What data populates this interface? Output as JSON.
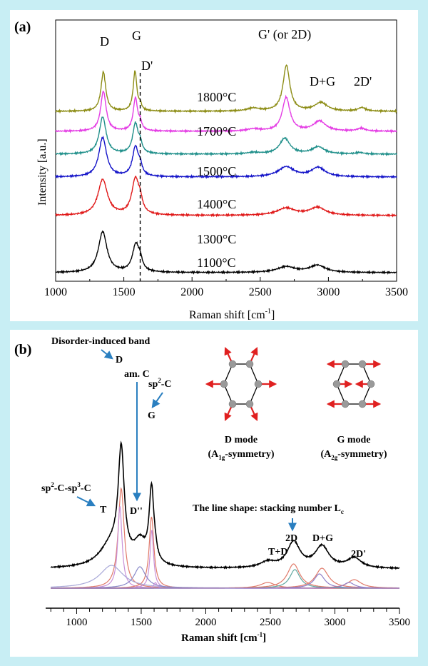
{
  "chart_data": [
    {
      "panel_label": "(a)",
      "type": "line",
      "xlabel": "Raman shift [cm",
      "xlabel_sup": "-1",
      "xlabel_end": "]",
      "ylabel": "Intensity [a.u.]",
      "xlim": [
        1000,
        3500
      ],
      "xticks": [
        "1000",
        "1500",
        "2000",
        "2500",
        "3000",
        "3500"
      ],
      "peak_labels": {
        "D": "D",
        "G": "G",
        "Dprime": "D'",
        "Gprime": "G' (or 2D)",
        "DG": "D+G",
        "TwoDprime": "2D'"
      },
      "dashed_line_x": 1620,
      "grid": false,
      "series": [
        {
          "name": "1800°C",
          "color": "#8c8c14",
          "offset": 6,
          "peaks": [
            [
              1350,
              55,
              21
            ],
            [
              1582,
              56,
              16
            ],
            [
              1620,
              8,
              11
            ],
            [
              2450,
              4,
              55
            ],
            [
              2692,
              64,
              30
            ],
            [
              2945,
              12,
              55
            ],
            [
              3245,
              5,
              32
            ]
          ]
        },
        {
          "name": "1700°C",
          "color": "#e43ce4",
          "offset": 5,
          "peaks": [
            [
              1350,
              56,
              24
            ],
            [
              1585,
              46,
              19
            ],
            [
              1620,
              10,
              13
            ],
            [
              2450,
              3,
              55
            ],
            [
              2690,
              47,
              34
            ],
            [
              2935,
              14,
              55
            ],
            [
              3240,
              4,
              35
            ]
          ]
        },
        {
          "name": "1500°C",
          "color": "#1f8f8a",
          "offset": 4,
          "peaks": [
            [
              1345,
              52,
              30
            ],
            [
              1585,
              42,
              24
            ],
            [
              1620,
              12,
              15
            ],
            [
              2450,
              2,
              55
            ],
            [
              2680,
              22,
              46
            ],
            [
              2925,
              10,
              55
            ],
            [
              3230,
              2,
              35
            ]
          ]
        },
        {
          "name": "1400°C",
          "color": "#1212c8",
          "offset": 3,
          "peaks": [
            [
              1345,
              55,
              34
            ],
            [
              1585,
              41,
              26
            ],
            [
              1620,
              12,
              16
            ],
            [
              2690,
              14,
              70
            ],
            [
              2925,
              13,
              60
            ]
          ]
        },
        {
          "name": "1300°C",
          "color": "#e01818",
          "offset": 2,
          "peaks": [
            [
              1345,
              50,
              42
            ],
            [
              1585,
              50,
              32
            ],
            [
              1620,
              14,
              18
            ],
            [
              2690,
              10,
              80
            ],
            [
              2920,
              11,
              70
            ]
          ]
        },
        {
          "name": "1100°C",
          "color": "#000000",
          "offset": 1,
          "peaks": [
            [
              1345,
              57,
              38
            ],
            [
              1588,
              38,
              30
            ],
            [
              1620,
              12,
              18
            ],
            [
              2690,
              8,
              80
            ],
            [
              2920,
              10,
              70
            ]
          ]
        }
      ]
    },
    {
      "panel_label": "(b)",
      "type": "line",
      "xlabel": "Raman shift [cm",
      "xlabel_sup": "-1",
      "xlabel_end": "]",
      "xlim": [
        760,
        3500
      ],
      "xticks": [
        "1000",
        "1500",
        "2000",
        "2500",
        "3000",
        "3500"
      ],
      "grid": false,
      "total_spectrum": {
        "color": "#000000",
        "baseline": 8,
        "peaks": [
          [
            1345,
            150,
            28
          ],
          [
            1580,
            105,
            22
          ],
          [
            1270,
            32,
            110
          ],
          [
            1490,
            30,
            55
          ],
          [
            1610,
            8,
            14
          ],
          [
            2480,
            8,
            70
          ],
          [
            2680,
            36,
            60
          ],
          [
            2900,
            30,
            65
          ],
          [
            3150,
            14,
            65
          ]
        ]
      },
      "fit_components": [
        {
          "center": 1345,
          "height": 140,
          "width": 28,
          "color": "#e07a6a"
        },
        {
          "center": 1335,
          "height": 115,
          "width": 20,
          "color": "#c890d8"
        },
        {
          "center": 1580,
          "height": 100,
          "width": 22,
          "color": "#e07a6a"
        },
        {
          "center": 1582,
          "height": 82,
          "width": 16,
          "color": "#c890d8"
        },
        {
          "center": 1270,
          "height": 32,
          "width": 110,
          "color": "#a8a8d8"
        },
        {
          "center": 1490,
          "height": 30,
          "width": 55,
          "color": "#8888c8"
        },
        {
          "center": 1610,
          "height": 8,
          "width": 14,
          "color": "#c890d8"
        },
        {
          "center": 2480,
          "height": 8,
          "width": 70,
          "color": "#e07a6a"
        },
        {
          "center": 2680,
          "height": 34,
          "width": 58,
          "color": "#e07a6a"
        },
        {
          "center": 2690,
          "height": 26,
          "width": 48,
          "color": "#60a8a0"
        },
        {
          "center": 2900,
          "height": 28,
          "width": 62,
          "color": "#e07a6a"
        },
        {
          "center": 2880,
          "height": 20,
          "width": 50,
          "color": "#9080c8"
        },
        {
          "center": 3150,
          "height": 12,
          "width": 65,
          "color": "#e07a6a"
        },
        {
          "center": 3110,
          "height": 8,
          "width": 50,
          "color": "#9080c8"
        }
      ],
      "annotations": {
        "disorder_band": "Disorder-induced band",
        "D": "D",
        "amC": "am. C",
        "sp2C_pre": "sp",
        "sp2C_sup": "2",
        "sp2C_post": "-C",
        "G": "G",
        "Ddoubleprime": "D''",
        "sp2sp3_a": "sp",
        "sp2sp3_sup1": "2",
        "sp2sp3_b": "-C-sp",
        "sp2sp3_sup2": "3",
        "sp2sp3_c": "-C",
        "T": "T",
        "TD": "T+D",
        "TwoD": "2D",
        "DG": "D+G",
        "TwoDprime": "2D'",
        "line_shape": "The line shape: stacking number L",
        "line_shape_sub": "c"
      },
      "modes": {
        "d_mode": "D mode",
        "d_sym_pre": "(A",
        "d_sym_sub": "1g",
        "d_sym_post": "-symmetry)",
        "g_mode": "G mode",
        "g_sym_pre": "(A",
        "g_sym_sub": "2g",
        "g_sym_post": "-symmetry)"
      }
    }
  ]
}
